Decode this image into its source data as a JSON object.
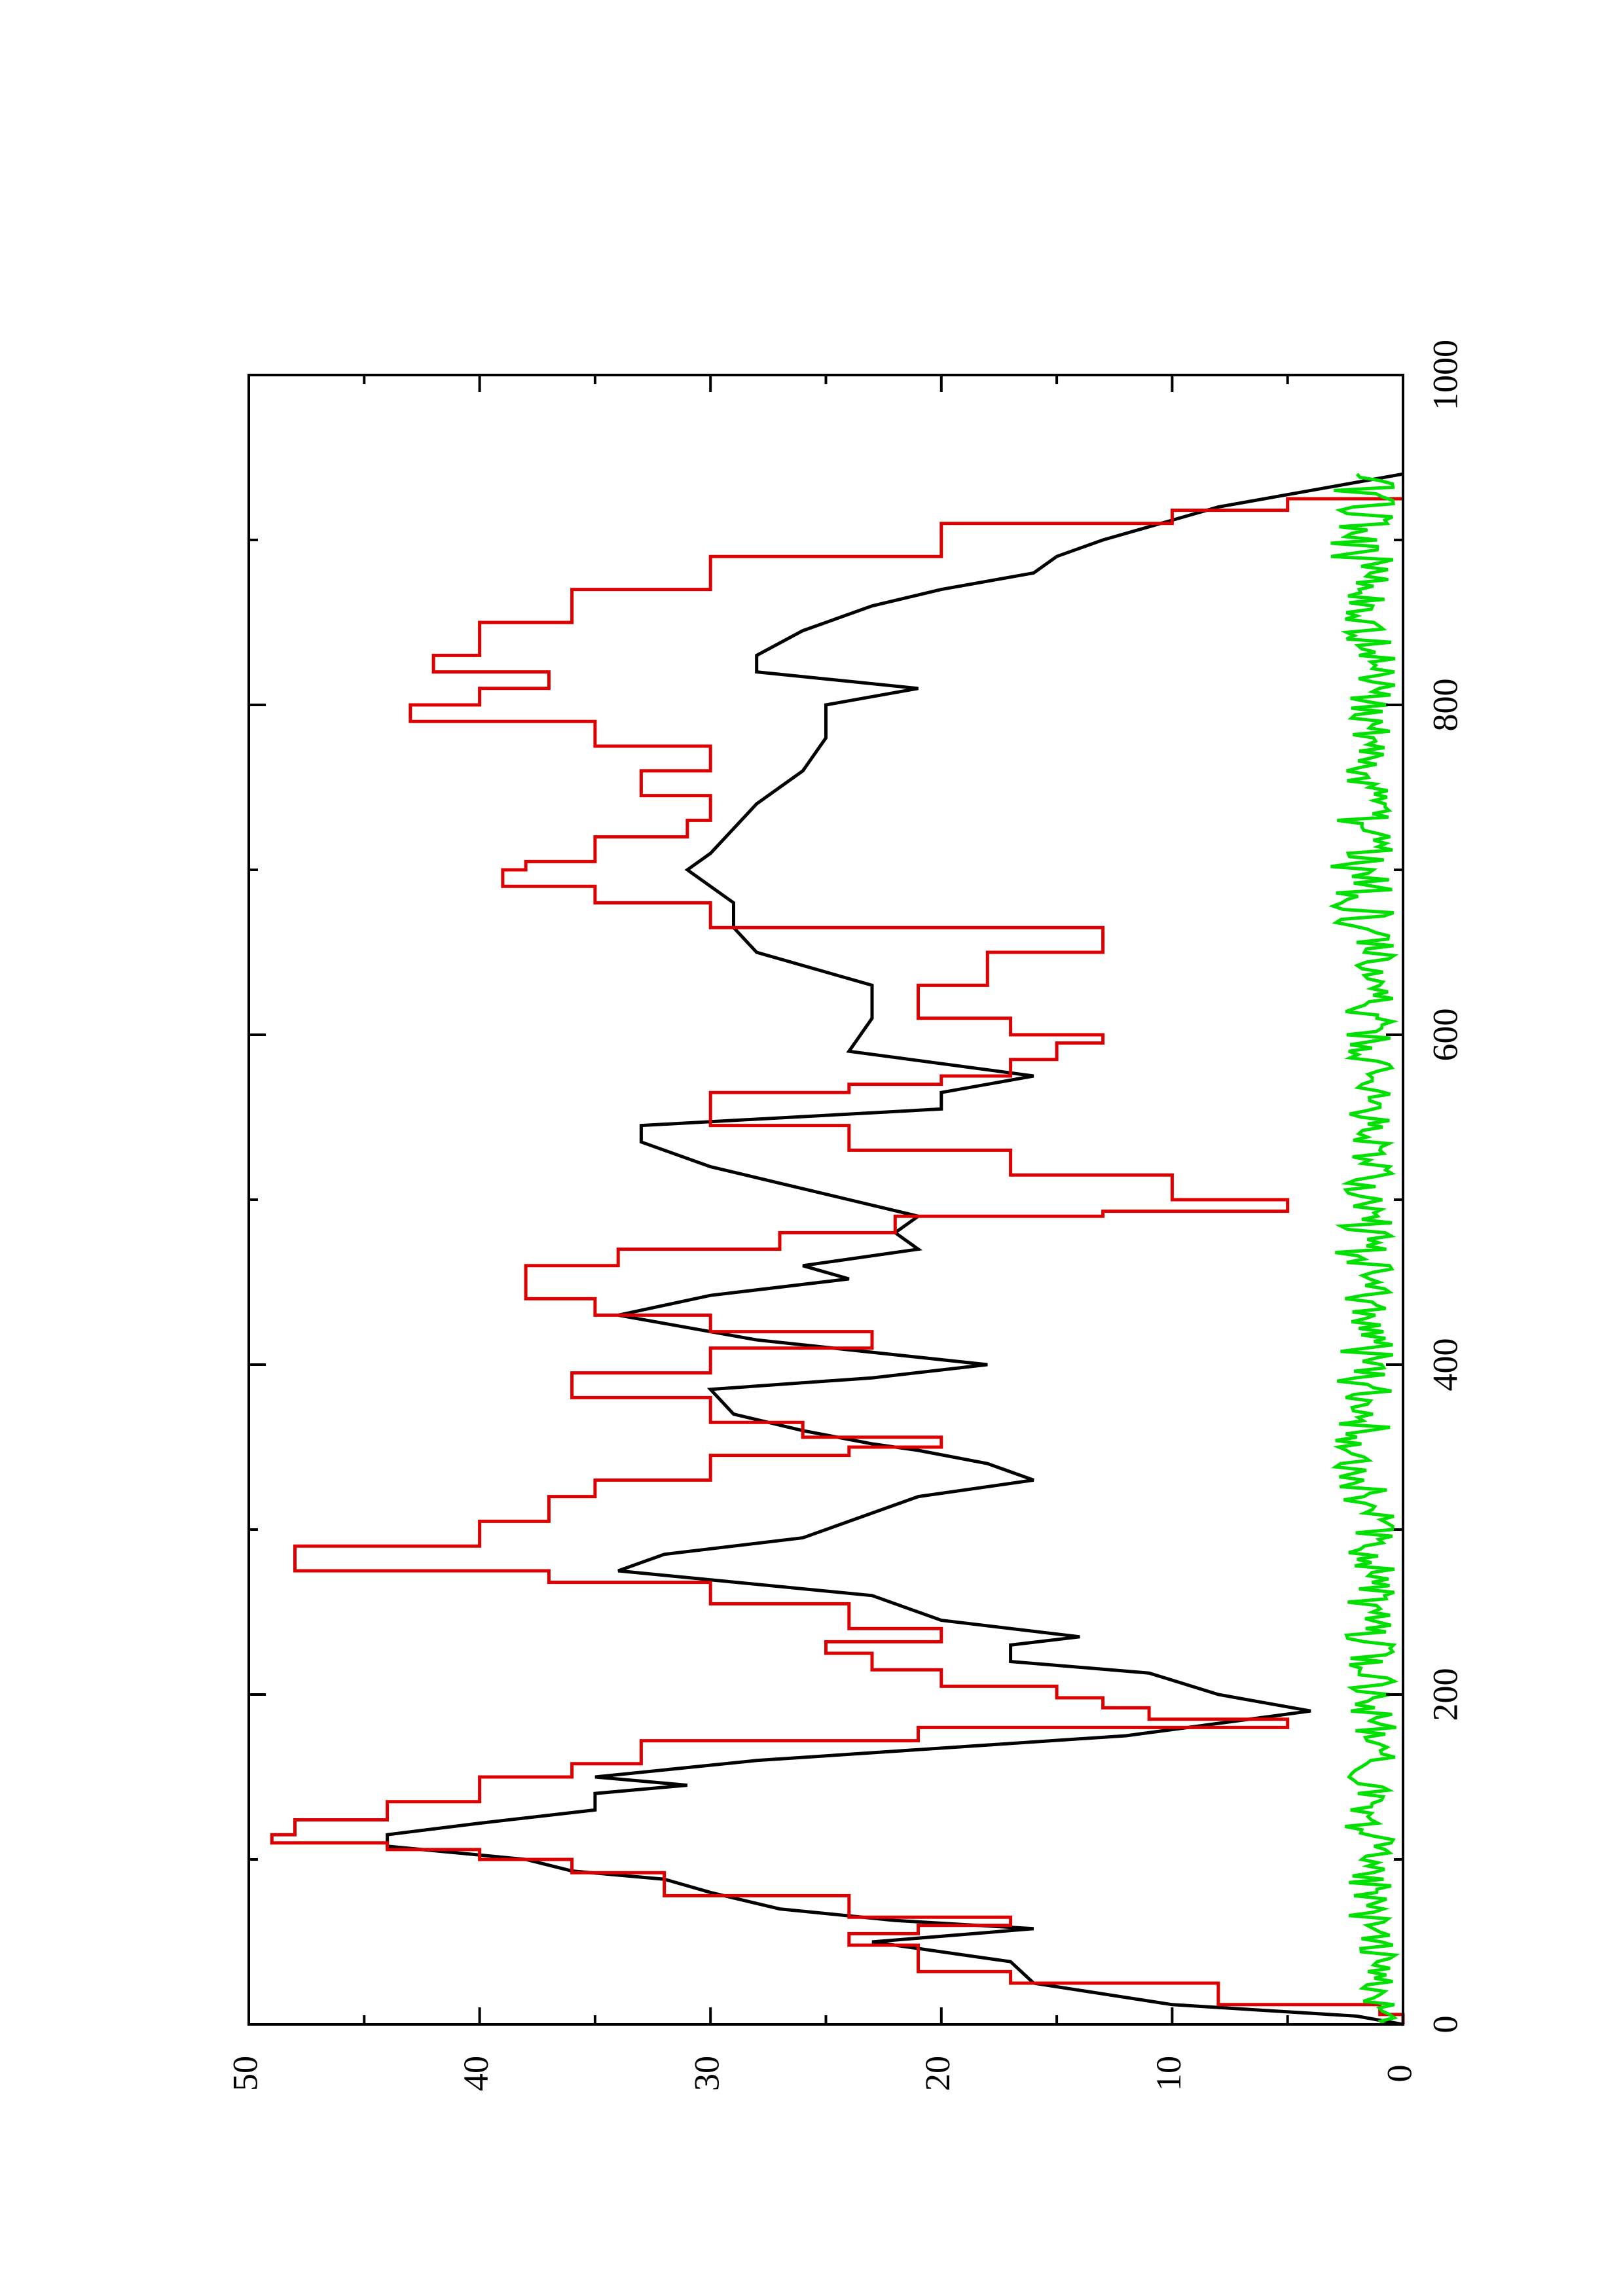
{
  "chart_data": {
    "type": "line",
    "orientation": "rotated 90° counter-clockwise",
    "title": "",
    "xlabel": "",
    "ylabel": "",
    "xlim": [
      0,
      1000
    ],
    "ylim": [
      0,
      50
    ],
    "x_ticks": [
      "0",
      "200",
      "400",
      "600",
      "800",
      "1000"
    ],
    "y_ticks": [
      "0",
      "10",
      "20",
      "30",
      "40",
      "50"
    ],
    "x_minor_step": 100,
    "y_minor_step": 5,
    "grid": false,
    "legend": "none",
    "series": [
      {
        "color": "#000000",
        "style": "line",
        "x": [
          0,
          5,
          12,
          25,
          38,
          50,
          58,
          63,
          70,
          80,
          88,
          93,
          100,
          108,
          115,
          122,
          130,
          140,
          145,
          150,
          160,
          175,
          190,
          200,
          213,
          220,
          230,
          235,
          245,
          260,
          275,
          285,
          295,
          305,
          320,
          330,
          340,
          348,
          352,
          360,
          370,
          385,
          392,
          400,
          415,
          430,
          442,
          452,
          460,
          470,
          480,
          490,
          500,
          510,
          520,
          535,
          545,
          555,
          565,
          575,
          590,
          610,
          630,
          650,
          665,
          680,
          700,
          710,
          725,
          740,
          760,
          780,
          800,
          810,
          820,
          830,
          845,
          860,
          870,
          880,
          890,
          900,
          920,
          940
        ],
        "y": [
          0,
          2,
          10,
          16,
          17,
          23,
          16,
          22,
          27,
          30,
          32,
          36,
          38,
          44,
          44,
          40,
          35,
          35,
          31,
          35,
          28,
          12,
          4,
          8,
          11,
          17,
          17,
          14,
          20,
          23,
          34,
          32,
          26,
          24,
          21,
          16,
          18,
          21,
          23,
          26,
          29,
          30,
          23,
          18,
          28,
          34,
          30,
          24,
          26,
          21,
          22,
          21,
          24,
          27,
          30,
          33,
          33,
          20,
          20,
          16,
          24,
          23,
          23,
          28,
          29,
          29,
          31,
          30,
          29,
          28,
          26,
          25,
          25,
          21,
          28,
          28,
          26,
          23,
          20,
          16,
          15,
          13,
          8,
          0
        ]
      },
      {
        "color": "#dc0000",
        "style": "step",
        "x": [
          0,
          6,
          12,
          25,
          32,
          48,
          55,
          60,
          65,
          78,
          92,
          100,
          106,
          110,
          115,
          124,
          135,
          150,
          158,
          172,
          180,
          185,
          192,
          198,
          205,
          215,
          225,
          232,
          240,
          255,
          268,
          275,
          290,
          305,
          320,
          330,
          345,
          350,
          356,
          365,
          380,
          395,
          410,
          420,
          430,
          440,
          450,
          460,
          470,
          480,
          490,
          493,
          500,
          515,
          530,
          545,
          555,
          565,
          570,
          575,
          585,
          595,
          600,
          610,
          630,
          640,
          650,
          665,
          680,
          690,
          700,
          705,
          720,
          730,
          745,
          760,
          775,
          790,
          800,
          810,
          820,
          830,
          850,
          870,
          890,
          910,
          918,
          925
        ],
        "y": [
          0,
          1,
          8,
          17,
          21,
          24,
          21,
          17,
          24,
          32,
          36,
          40,
          44,
          49,
          48,
          44,
          40,
          36,
          33,
          21,
          5,
          11,
          13,
          15,
          20,
          23,
          25,
          20,
          24,
          30,
          37,
          48,
          40,
          37,
          35,
          30,
          24,
          20,
          26,
          30,
          36,
          30,
          23,
          30,
          35,
          38,
          38,
          34,
          27,
          22,
          13,
          5,
          10,
          17,
          24,
          30,
          30,
          24,
          20,
          17,
          15,
          13,
          17,
          21,
          18,
          18,
          13,
          30,
          35,
          39,
          38,
          35,
          31,
          30,
          33,
          30,
          35,
          43,
          40,
          37,
          42,
          40,
          36,
          30,
          20,
          10,
          5,
          0
        ]
      },
      {
        "color": "#00e000",
        "style": "noise",
        "description": "fluctuating signal between 0 and ~3 along the whole range",
        "x": [
          0,
          25,
          50,
          75,
          100,
          125,
          150,
          175,
          200,
          225,
          250,
          275,
          300,
          325,
          350,
          375,
          400,
          425,
          450,
          475,
          500,
          525,
          550,
          575,
          600,
          625,
          650,
          675,
          700,
          725,
          750,
          775,
          800,
          825,
          850,
          875,
          900,
          925,
          940
        ],
        "y": [
          1,
          1.5,
          1.2,
          1.8,
          1.5,
          1.8,
          1.6,
          1.4,
          1.6,
          1.8,
          2,
          1.8,
          1.5,
          2,
          2,
          1.8,
          2,
          1.6,
          2,
          2.2,
          1.8,
          1.5,
          1.6,
          1.5,
          1.8,
          1.6,
          2,
          2,
          2.2,
          2,
          2,
          1.5,
          2,
          1.5,
          1.8,
          2,
          2.2,
          2,
          2
        ]
      }
    ]
  }
}
